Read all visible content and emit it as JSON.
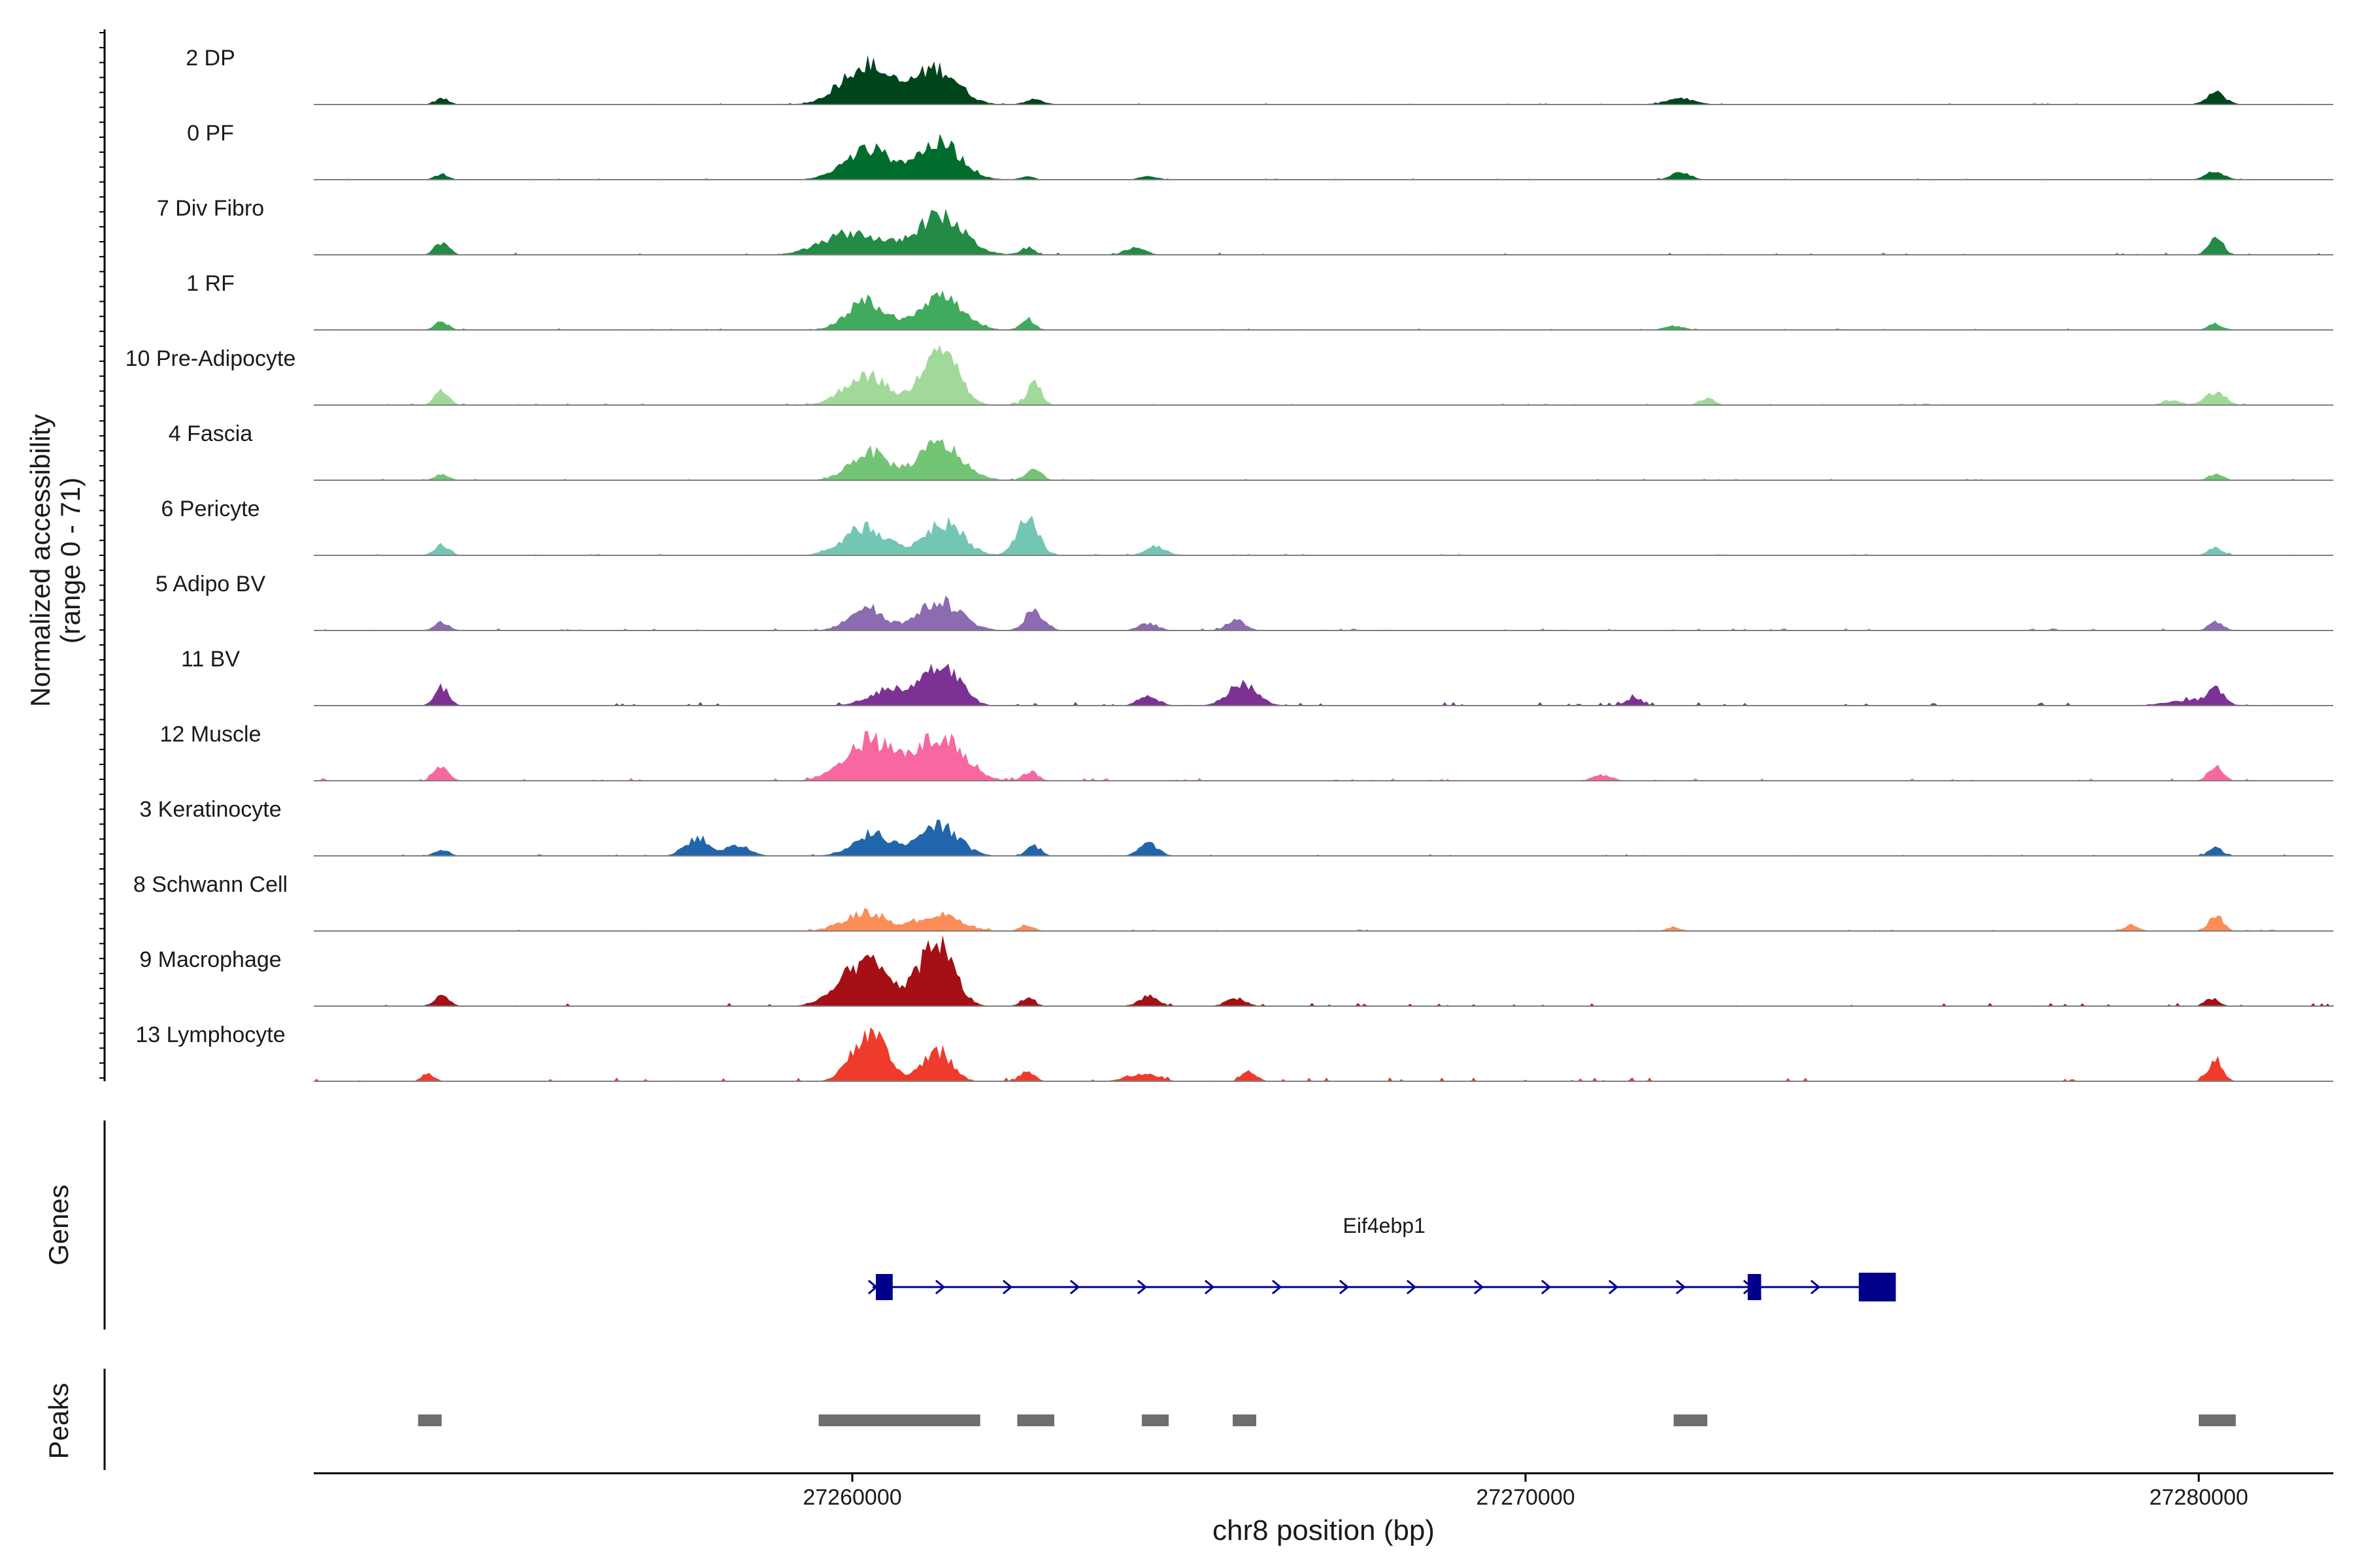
{
  "chart_data": {
    "type": "area",
    "ylabel_line1": "Normalized accessibility",
    "ylabel_line2": "(range 0 - 71)",
    "xlabel": "chr8 position (bp)",
    "xlim": [
      27252000,
      27282000
    ],
    "xticks": [
      {
        "value": 27260000,
        "label": "27260000"
      },
      {
        "value": 27270000,
        "label": "27270000"
      },
      {
        "value": 27280000,
        "label": "27280000"
      }
    ],
    "ylim": [
      0,
      71
    ],
    "tracks": [
      {
        "name": "2 DP",
        "color": "#00441b",
        "peaks": [
          [
            27253900,
            150,
            6
          ],
          [
            27260200,
            500,
            40
          ],
          [
            27261250,
            450,
            36
          ],
          [
            27262700,
            200,
            5
          ],
          [
            27272300,
            300,
            6
          ],
          [
            27280250,
            200,
            12
          ]
        ],
        "noise": 1.2
      },
      {
        "name": "0 PF",
        "color": "#006d2c",
        "peaks": [
          [
            27253900,
            150,
            5
          ],
          [
            27260250,
            500,
            30
          ],
          [
            27261300,
            450,
            36
          ],
          [
            27262600,
            150,
            3
          ],
          [
            27264400,
            200,
            3
          ],
          [
            27272300,
            200,
            7
          ],
          [
            27280250,
            200,
            8
          ]
        ],
        "noise": 1.2
      },
      {
        "name": "7 Div Fibro",
        "color": "#238b45",
        "peaks": [
          [
            27253900,
            150,
            12
          ],
          [
            27260000,
            600,
            22
          ],
          [
            27261300,
            500,
            38
          ],
          [
            27262600,
            150,
            7
          ],
          [
            27264200,
            200,
            8
          ],
          [
            27280250,
            150,
            18
          ]
        ],
        "noise": 2.2
      },
      {
        "name": "1 RF",
        "color": "#41ab5d",
        "peaks": [
          [
            27253900,
            150,
            8
          ],
          [
            27260200,
            400,
            28
          ],
          [
            27261300,
            450,
            34
          ],
          [
            27262600,
            150,
            10
          ],
          [
            27272200,
            200,
            4
          ],
          [
            27280250,
            150,
            6
          ]
        ],
        "noise": 1.6
      },
      {
        "name": "10 Pre-Adipocyte",
        "color": "#a1d99b",
        "peaks": [
          [
            27253900,
            150,
            14
          ],
          [
            27260200,
            450,
            30
          ],
          [
            27261300,
            350,
            65
          ],
          [
            27262700,
            150,
            22
          ],
          [
            27272700,
            150,
            7
          ],
          [
            27279600,
            200,
            5
          ],
          [
            27280250,
            200,
            14
          ]
        ],
        "noise": 2.4
      },
      {
        "name": "4 Fascia",
        "color": "#74c476",
        "peaks": [
          [
            27253900,
            150,
            6
          ],
          [
            27260250,
            400,
            28
          ],
          [
            27261300,
            450,
            36
          ],
          [
            27262700,
            150,
            12
          ],
          [
            27280250,
            150,
            6
          ]
        ],
        "noise": 1.6
      },
      {
        "name": "6 Pericyte",
        "color": "#74c6b4",
        "peaks": [
          [
            27253900,
            150,
            10
          ],
          [
            27260200,
            450,
            28
          ],
          [
            27261350,
            400,
            32
          ],
          [
            27262600,
            220,
            38
          ],
          [
            27264500,
            200,
            10
          ],
          [
            27280250,
            150,
            8
          ]
        ],
        "noise": 1.8
      },
      {
        "name": "5 Adipo BV",
        "color": "#8c6bb1",
        "peaks": [
          [
            27253900,
            150,
            8
          ],
          [
            27260200,
            350,
            24
          ],
          [
            27261300,
            450,
            28
          ],
          [
            27262700,
            200,
            18
          ],
          [
            27264400,
            200,
            7
          ],
          [
            27265700,
            200,
            10
          ],
          [
            27280250,
            150,
            8
          ]
        ],
        "noise": 2.2
      },
      {
        "name": "11 BV",
        "color": "#7b3294",
        "peaks": [
          [
            27253900,
            150,
            18
          ],
          [
            27260600,
            450,
            18
          ],
          [
            27261350,
            350,
            42
          ],
          [
            27264400,
            200,
            10
          ],
          [
            27265800,
            300,
            22
          ],
          [
            27271600,
            150,
            8
          ],
          [
            27279900,
            500,
            6
          ],
          [
            27280250,
            150,
            14
          ]
        ],
        "noise": 3.6
      },
      {
        "name": "12 Muscle",
        "color": "#f768a1",
        "peaks": [
          [
            27253900,
            150,
            16
          ],
          [
            27260250,
            500,
            40
          ],
          [
            27261300,
            500,
            42
          ],
          [
            27262650,
            150,
            10
          ],
          [
            27271150,
            200,
            6
          ],
          [
            27280250,
            150,
            14
          ]
        ],
        "noise": 2.8
      },
      {
        "name": "3 Keratinocyte",
        "color": "#2166ac",
        "peaks": [
          [
            27253900,
            150,
            6
          ],
          [
            27257700,
            250,
            18
          ],
          [
            27258300,
            250,
            10
          ],
          [
            27260300,
            400,
            22
          ],
          [
            27261300,
            400,
            30
          ],
          [
            27262700,
            150,
            10
          ],
          [
            27264400,
            200,
            12
          ],
          [
            27280250,
            150,
            8
          ]
        ],
        "noise": 1.6
      },
      {
        "name": "8 Schwann Cell",
        "color": "#fc8d59",
        "peaks": [
          [
            27260200,
            450,
            18
          ],
          [
            27261300,
            450,
            16
          ],
          [
            27262600,
            150,
            6
          ],
          [
            27272200,
            150,
            4
          ],
          [
            27279000,
            150,
            6
          ],
          [
            27280250,
            150,
            16
          ]
        ],
        "noise": 1.8
      },
      {
        "name": "9 Macrophage",
        "color": "#a50f15",
        "peaks": [
          [
            27253900,
            150,
            12
          ],
          [
            27260200,
            500,
            44
          ],
          [
            27261250,
            350,
            64
          ],
          [
            27262600,
            150,
            8
          ],
          [
            27264400,
            200,
            10
          ],
          [
            27265700,
            200,
            8
          ],
          [
            27280200,
            150,
            8
          ]
        ],
        "noise": 3.2
      },
      {
        "name": "13 Lymphocyte",
        "color": "#ef3b2c",
        "peaks": [
          [
            27253700,
            120,
            8
          ],
          [
            27260250,
            350,
            50
          ],
          [
            27261250,
            300,
            30
          ],
          [
            27262600,
            150,
            10
          ],
          [
            27264300,
            300,
            8
          ],
          [
            27265900,
            150,
            10
          ],
          [
            27280250,
            150,
            22
          ]
        ],
        "noise": 4.0
      }
    ],
    "genes_label": "Genes",
    "gene": {
      "name": "Eif4ebp1",
      "color": "#00008b",
      "start": 27260300,
      "end": 27275500,
      "strand": "+",
      "exons": [
        [
          27260350,
          27260600
        ],
        [
          27273300,
          27273500
        ],
        [
          27274950,
          27275500
        ]
      ]
    },
    "peaks_label": "Peaks",
    "peak_regions": [
      [
        27253550,
        27253900
      ],
      [
        27259500,
        27261900
      ],
      [
        27262450,
        27263000
      ],
      [
        27264300,
        27264700
      ],
      [
        27265650,
        27266000
      ],
      [
        27272200,
        27272700
      ],
      [
        27280000,
        27280550
      ]
    ],
    "peak_color": "#6e6e6e",
    "grid": false
  }
}
